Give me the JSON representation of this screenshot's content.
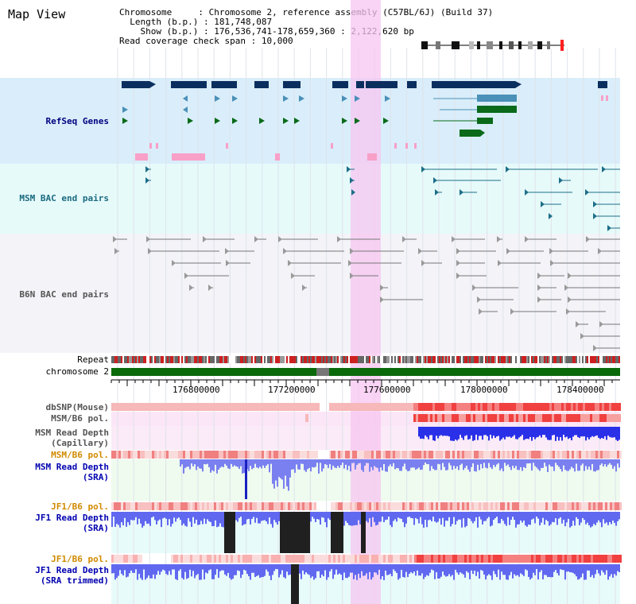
{
  "view_title": "Map View",
  "info": {
    "chromosome_label": "Chromosome",
    "chromosome_value": "Chromosome 2, reference assembly (C57BL/6J) (Build 37)",
    "length_label": "Length (b.p.)",
    "length_value": "181,748,087",
    "show_label": "Show (b.p.)",
    "show_value": "176,536,741-178,659,360 : 2,122,620 bp",
    "coverage_label": "Read coverage check span",
    "coverage_value": "10,000"
  },
  "tracks": {
    "refseq": "RefSeq Genes",
    "msm_bac": "MSM BAC end pairs",
    "b6n_bac": "B6N BAC end pairs",
    "repeat": "Repeat",
    "chromosome": "chromosome 2",
    "dbsnp": "dbSNP(Mouse)",
    "msm_b6_pol": "MSM/B6 pol.",
    "msm_depth_cap_1": "MSM Read Depth",
    "msm_depth_cap_2": "(Capillary)",
    "msm_b6_pol2": "MSM/B6 pol.",
    "msm_depth_sra_1": "MSM Read Depth",
    "msm_depth_sra_2": "(SRA)",
    "jf1_b6_pol": "JF1/B6 pol.",
    "jf1_depth_sra_1": "JF1 Read Depth",
    "jf1_depth_sra_2": "(SRA)",
    "jf1_b6_pol2": "JF1/B6 pol.",
    "jf1_depth_trim_1": "JF1 Read Depth",
    "jf1_depth_trim_2": "(SRA trimmed)"
  },
  "axis": {
    "ticks": [
      "176800000",
      "177200000",
      "177600000",
      "178000000",
      "178400000"
    ]
  },
  "colors": {
    "highlight": "#f7c6f0",
    "refseq_bg": "#d9eefa",
    "msm_bg": "#e6fafa",
    "b6n_bg": "#f3f3f8",
    "gene_dark": "#0a2f5f",
    "gene_mid": "#4a90b8",
    "gene_green": "#0a6a1a",
    "gene_pink": "#f8a0c8",
    "chromosome_green": "#0a6a0a",
    "depth_blue": "#3040e0"
  }
}
